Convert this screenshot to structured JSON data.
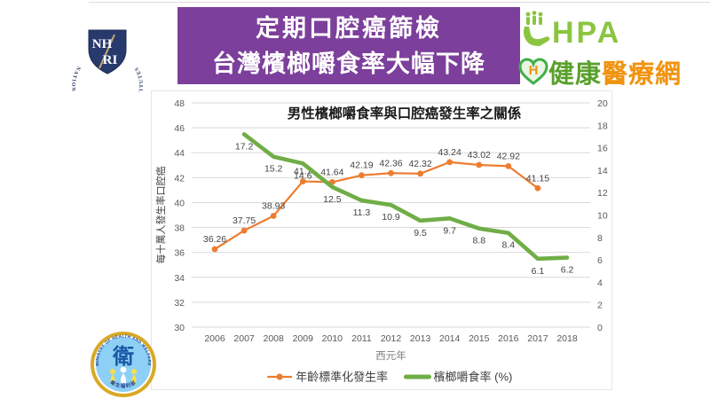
{
  "header": {
    "nhri_logo": {
      "ring_text": "NATIONAL HEALTH RESEARCH INSTITUTES",
      "shield_top": "NH",
      "shield_bottom": "RI"
    },
    "banner": {
      "line1": "定期口腔癌篩檢",
      "line2": "台灣檳榔嚼食率大幅下降",
      "bg_color": "#7c3f9b",
      "text_color": "#ffffff"
    },
    "hpa_logo": {
      "text": "HPA",
      "color": "#8bc53f"
    },
    "health_news_logo": {
      "heart_letter": "H",
      "part1": "健康",
      "part1_color": "#5aa02c",
      "part2": "醫療網",
      "part2_color": "#f0930f"
    }
  },
  "footer": {
    "mohw_logo": {
      "ring_top": "MINISTRY OF HEALTH AND WELFARE",
      "center_char": "衛",
      "ring_bottom": "衛生福利部"
    }
  },
  "chart_data": {
    "type": "line",
    "title": "男性檳榔嚼食率與口腔癌發生率之關係",
    "xlabel": "西元年",
    "ylabel_left": "每十萬人發生率口腔癌",
    "x": [
      "2006",
      "2007",
      "2008",
      "2009",
      "2010",
      "2011",
      "2012",
      "2013",
      "2014",
      "2015",
      "2016",
      "2017",
      "2018"
    ],
    "left_axis": {
      "min": 30,
      "max": 48,
      "step": 2
    },
    "right_axis": {
      "min": 0,
      "max": 20,
      "step": 2
    },
    "grid": true,
    "legend_position": "bottom",
    "series": [
      {
        "name": "年齡標準化發生率",
        "axis": "left",
        "color": "#ED7D31",
        "marker": true,
        "line_width": 2.2,
        "label_dy": -8,
        "values": [
          36.26,
          37.75,
          38.93,
          41.7,
          41.64,
          42.19,
          42.36,
          42.32,
          43.24,
          43.02,
          42.92,
          41.15,
          null
        ]
      },
      {
        "name": "檳榔嚼食率 (%)",
        "axis": "right",
        "color": "#70AD47",
        "marker": false,
        "line_width": 4.6,
        "label_dy": 17,
        "values": [
          null,
          17.2,
          15.2,
          14.6,
          12.5,
          11.3,
          10.9,
          9.5,
          9.7,
          8.8,
          8.4,
          6.1,
          6.2
        ]
      }
    ]
  }
}
